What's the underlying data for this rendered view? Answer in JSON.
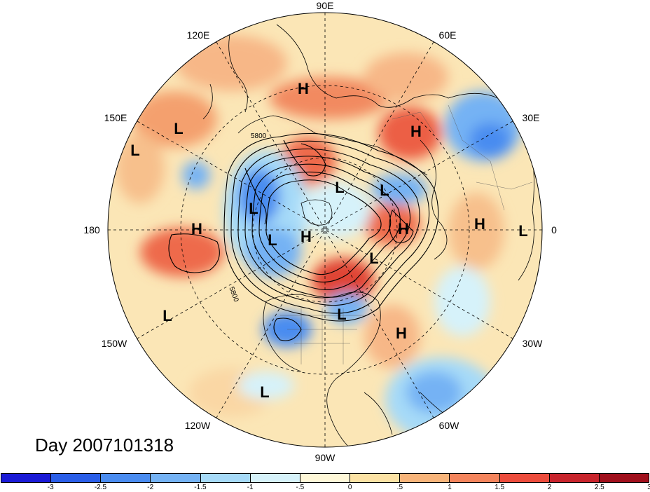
{
  "map": {
    "day_label": "Day 2007101318",
    "longitude_labels": {
      "top": "90E",
      "upper_left": "120E",
      "upper_right": "60E",
      "left_upper": "150E",
      "right_upper": "30E",
      "left": "180",
      "right": "0",
      "left_lower": "150W",
      "right_lower": "30W",
      "lower_left": "120W",
      "lower_right": "60W",
      "bottom": "90W"
    },
    "contour_labels": [
      "5800",
      "5800"
    ],
    "pressure_centers": [
      {
        "type": "H",
        "name": "high-center-1"
      },
      {
        "type": "H",
        "name": "high-center-2"
      },
      {
        "type": "H",
        "name": "high-center-3"
      },
      {
        "type": "H",
        "name": "high-center-4"
      },
      {
        "type": "H",
        "name": "high-center-5"
      },
      {
        "type": "H",
        "name": "high-center-6"
      },
      {
        "type": "H",
        "name": "high-center-7"
      },
      {
        "type": "L",
        "name": "low-center-1"
      },
      {
        "type": "L",
        "name": "low-center-2"
      },
      {
        "type": "L",
        "name": "low-center-3"
      },
      {
        "type": "L",
        "name": "low-center-4"
      },
      {
        "type": "L",
        "name": "low-center-5"
      },
      {
        "type": "L",
        "name": "low-center-6"
      },
      {
        "type": "L",
        "name": "low-center-7"
      },
      {
        "type": "L",
        "name": "low-center-8"
      },
      {
        "type": "L",
        "name": "low-center-9"
      },
      {
        "type": "L",
        "name": "low-center-10"
      },
      {
        "type": "L",
        "name": "low-center-11"
      }
    ]
  },
  "colorbar": {
    "colors": [
      "#1a1ad6",
      "#2a5ee8",
      "#4a8cf0",
      "#74b2f4",
      "#a6daf8",
      "#d6f2fa",
      "#fff8d8",
      "#fce2a4",
      "#f8b47a",
      "#f4845c",
      "#ec4c3c",
      "#c8242c",
      "#a0101c"
    ],
    "tick_labels": [
      "-3",
      "-2.5",
      "-2",
      "-1.5",
      "-1",
      "-.5",
      "0",
      ".5",
      "1",
      "1.5",
      "2",
      "2.5",
      "3"
    ]
  }
}
